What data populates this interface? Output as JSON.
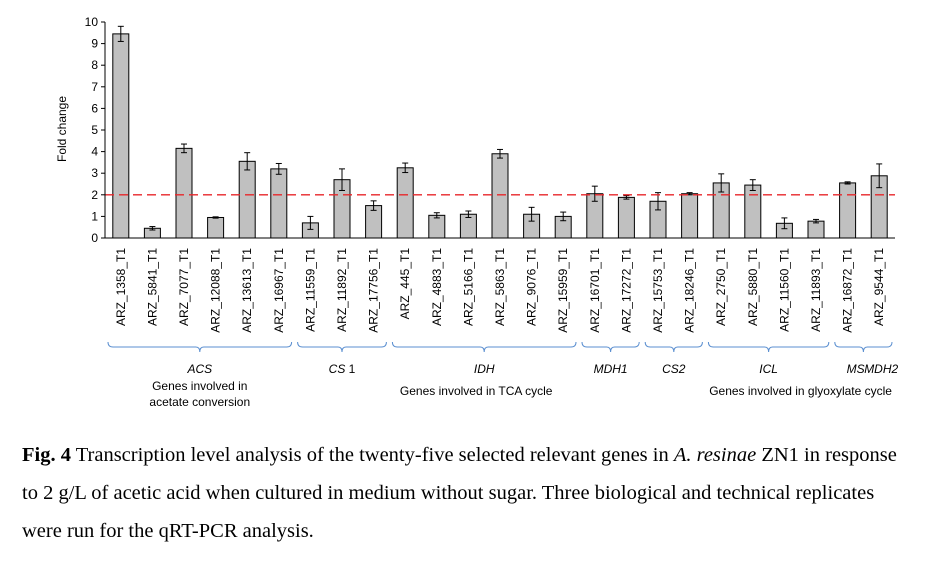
{
  "chart_data": {
    "type": "bar",
    "ylabel": "Fold change",
    "ylim": [
      0,
      10
    ],
    "yticks": [
      0,
      1,
      2,
      3,
      4,
      5,
      6,
      7,
      8,
      9,
      10
    ],
    "reference_line": 2,
    "colors": {
      "bar": "#c0c0c0",
      "reference_line": "#e8262a"
    },
    "categories": [
      "ARZ_1358_T1",
      "ARZ_5841_T1",
      "ARZ_7077_T1",
      "ARZ_12088_T1",
      "ARZ_13613_T1",
      "ARZ_16967_T1",
      "ARZ_11559_T1",
      "ARZ_11892_T1",
      "ARZ_17756_T1",
      "ARZ_445_T1",
      "ARZ_4883_T1",
      "ARZ_5166_T1",
      "ARZ_5863_T1",
      "ARZ_9076_T1",
      "ARZ_15959_T1",
      "ARZ_16701_T1",
      "ARZ_17272_T1",
      "ARZ_15753_T1",
      "ARZ_18246_T1",
      "ARZ_2750_T1",
      "ARZ_5880_T1",
      "ARZ_11560_T1",
      "ARZ_11893_T1",
      "ARZ_16872_T1",
      "ARZ_9544_T1"
    ],
    "values": [
      9.45,
      0.45,
      4.15,
      0.95,
      3.55,
      3.2,
      0.7,
      2.7,
      1.5,
      3.25,
      1.05,
      1.1,
      3.9,
      1.1,
      1.0,
      2.05,
      1.88,
      1.7,
      2.05,
      2.55,
      2.45,
      0.68,
      0.78,
      2.55,
      2.88
    ],
    "errors": [
      0.35,
      0.08,
      0.2,
      0.03,
      0.4,
      0.25,
      0.3,
      0.5,
      0.22,
      0.22,
      0.12,
      0.15,
      0.2,
      0.32,
      0.2,
      0.35,
      0.08,
      0.4,
      0.05,
      0.42,
      0.25,
      0.25,
      0.08,
      0.05,
      0.55
    ],
    "gene_groups": [
      {
        "label": "ACS",
        "start": 0,
        "end": 5
      },
      {
        "label": "CS 1",
        "start": 6,
        "end": 8
      },
      {
        "label": "IDH",
        "start": 9,
        "end": 14
      },
      {
        "label": "MDH1",
        "start": 15,
        "end": 16
      },
      {
        "label": "CS2",
        "start": 17,
        "end": 18
      },
      {
        "label": "ICL",
        "start": 19,
        "end": 22
      },
      {
        "label": "MS",
        "start": 23,
        "end": 23
      },
      {
        "label": "MDH2",
        "start": 24,
        "end": 24
      }
    ],
    "process_labels": [
      {
        "line1": "Genes involved in",
        "line2": "acetate conversion"
      },
      {
        "line1": "Genes involved in TCA cycle"
      },
      {
        "line1": "Genes involved in glyoxylate cycle"
      }
    ]
  },
  "caption": {
    "fig_label": "Fig. 4",
    "part1": " Transcription level analysis of the twenty-five selected relevant genes in ",
    "species": "A. resinae",
    "part2": " ZN1 in response to 2 g/L of acetic acid when cultured in medium without sugar. Three biological and technical replicates were run for the qRT-PCR analysis."
  }
}
